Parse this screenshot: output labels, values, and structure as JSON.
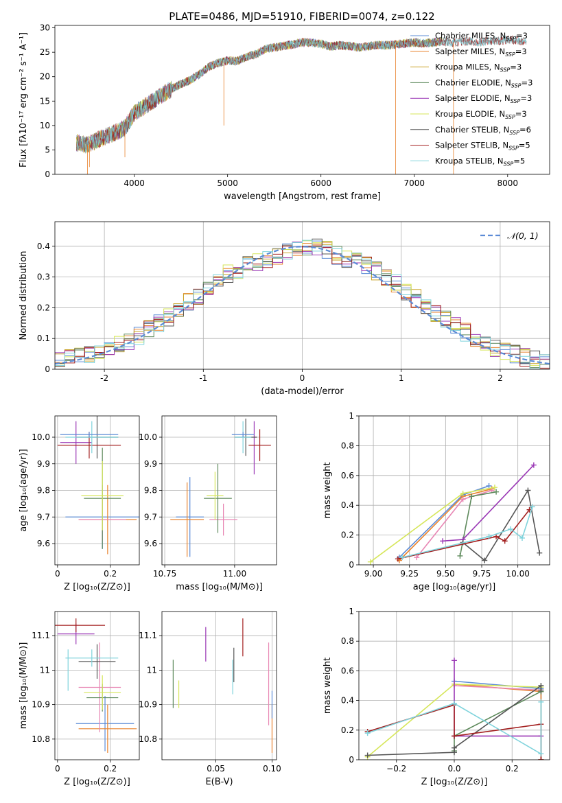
{
  "figure_title": "PLATE=0486, MJD=51910, FIBERID=0074, z=0.122",
  "colors": {
    "cha_miles": "#5b8bd6",
    "sal_miles": "#e8822c",
    "kro_miles": "#c9a227",
    "cha_elodie": "#5e8a5c",
    "sal_elodie": "#9a37b5",
    "kro_elodie": "#d6e65a",
    "cha_stelib": "#555555",
    "sal_stelib": "#a31f1f",
    "kro_stelib": "#7fd3dc",
    "pink": "#e886b4",
    "normal": "#5b8bd6"
  },
  "chart_data": [
    {
      "id": "spectrum",
      "type": "line",
      "title": "PLATE=0486, MJD=51910, FIBERID=0074, z=0.122",
      "xlabel": "wavelength [Angstrom, rest frame]",
      "ylabel": "Flux [fλ10⁻¹⁷ erg cm⁻² s⁻¹ A⁻¹]",
      "xlim": [
        3150,
        8450
      ],
      "ylim": [
        0,
        30.5
      ],
      "xticks": [
        4000,
        5000,
        6000,
        7000,
        8000
      ],
      "yticks": [
        0,
        5,
        10,
        15,
        20,
        25,
        30
      ],
      "grid": false,
      "legend_position": "upper-right",
      "legend": [
        {
          "label": "Chabrier MILES, N",
          "sub": "SSP",
          "tail": "=3",
          "color_key": "cha_miles"
        },
        {
          "label": "Salpeter MILES, N",
          "sub": "SSP",
          "tail": "=3",
          "color_key": "sal_miles"
        },
        {
          "label": "Kroupa MILES, N",
          "sub": "SSP",
          "tail": "=3",
          "color_key": "kro_miles"
        },
        {
          "label": "Chabrier ELODIE, N",
          "sub": "SSP",
          "tail": "=3",
          "color_key": "cha_elodie"
        },
        {
          "label": "Salpeter ELODIE, N",
          "sub": "SSP",
          "tail": "=3",
          "color_key": "sal_elodie"
        },
        {
          "label": "Kroupa ELODIE, N",
          "sub": "SSP",
          "tail": "=3",
          "color_key": "kro_elodie"
        },
        {
          "label": "Chabrier STELIB, N",
          "sub": "SSP",
          "tail": "=6",
          "color_key": "cha_stelib"
        },
        {
          "label": "Salpeter STELIB, N",
          "sub": "SSP",
          "tail": "=5",
          "color_key": "sal_stelib"
        },
        {
          "label": "Kroupa STELIB, N",
          "sub": "SSP",
          "tail": "=5",
          "color_key": "kro_stelib"
        }
      ],
      "continuum_x": [
        3380,
        3500,
        3600,
        3700,
        3800,
        3900,
        4000,
        4100,
        4200,
        4300,
        4400,
        4500,
        4600,
        4700,
        4800,
        4900,
        5000,
        5100,
        5200,
        5300,
        5400,
        5500,
        5600,
        5700,
        5800,
        5900,
        6000,
        6100,
        6200,
        6300,
        6400,
        6500,
        6600,
        6700,
        6800,
        6900,
        7000,
        7100,
        7200,
        7300,
        7400,
        7500,
        7600,
        7700,
        7800,
        7900,
        8000,
        8100,
        8200
      ],
      "continuum_y": [
        6.5,
        6.0,
        7.0,
        7.8,
        8.6,
        9.5,
        12.5,
        13.8,
        15.0,
        16.3,
        17.5,
        18.5,
        19.3,
        20.5,
        22.0,
        22.8,
        23.3,
        23.2,
        24.0,
        24.6,
        25.6,
        26.0,
        26.3,
        26.6,
        27.0,
        27.0,
        26.7,
        26.2,
        26.4,
        26.3,
        26.0,
        26.2,
        26.5,
        26.4,
        26.6,
        26.8,
        27.0,
        26.8,
        27.0,
        27.2,
        27.0,
        27.1,
        27.3,
        27.0,
        27.4,
        27.3,
        27.6,
        27.5,
        27.0
      ],
      "spikes": [
        {
          "x": 3520,
          "y": 1.5
        },
        {
          "x": 3900,
          "y": 3.5
        },
        {
          "x": 4960,
          "y": 10.0
        },
        {
          "x": 6800,
          "y": 0.0
        },
        {
          "x": 7420,
          "y": 0.0
        },
        {
          "x": 3500,
          "y": 0.0
        }
      ]
    },
    {
      "id": "residual_hist",
      "type": "histogram",
      "xlabel": "(data-model)/error",
      "ylabel": "Normed distribution",
      "xlim": [
        -2.5,
        2.5
      ],
      "ylim": [
        0,
        0.48
      ],
      "xticks": [
        -2,
        -1,
        0,
        1,
        2
      ],
      "yticks": [
        0.0,
        0.1,
        0.2,
        0.3,
        0.4
      ],
      "grid": true,
      "legend_position": "upper-right",
      "legend": [
        {
          "label": "𝒩(0, 1)",
          "color_key": "normal",
          "style": "dashed"
        }
      ],
      "bin_width": 0.1,
      "bin_start": -2.5,
      "base_template": [
        0.03,
        0.04,
        0.04,
        0.05,
        0.06,
        0.07,
        0.08,
        0.09,
        0.11,
        0.13,
        0.15,
        0.17,
        0.19,
        0.22,
        0.24,
        0.26,
        0.29,
        0.31,
        0.32,
        0.34,
        0.35,
        0.36,
        0.37,
        0.38,
        0.39,
        0.4,
        0.4,
        0.39,
        0.37,
        0.36,
        0.35,
        0.34,
        0.32,
        0.3,
        0.28,
        0.25,
        0.23,
        0.2,
        0.18,
        0.16,
        0.14,
        0.12,
        0.1,
        0.08,
        0.07,
        0.06,
        0.05,
        0.04,
        0.03,
        0.02
      ],
      "series_keys": [
        "cha_miles",
        "sal_miles",
        "kro_miles",
        "cha_elodie",
        "sal_elodie",
        "kro_elodie",
        "cha_stelib",
        "sal_stelib",
        "kro_stelib"
      ]
    },
    {
      "id": "age_vs_Z",
      "type": "errorbar",
      "xlabel": "Z [log₁₀(Z/Z⊙)]",
      "ylabel": "age  [log₁₀(age/yr)]",
      "xlim": [
        -0.01,
        0.31
      ],
      "ylim": [
        9.52,
        10.08
      ],
      "xticks": [
        0.0,
        0.2
      ],
      "yticks": [
        9.6,
        9.7,
        9.8,
        9.9,
        10.0
      ],
      "ytick_labels": [
        "9.6",
        "9.7",
        "9.8",
        "9.9",
        "10.0"
      ],
      "grid": true,
      "points": [
        {
          "c": "cha_miles",
          "x": 0.17,
          "xe": 0.14,
          "y": 9.7,
          "ye": 0.12
        },
        {
          "c": "sal_miles",
          "x": 0.19,
          "xe": 0.11,
          "y": 9.69,
          "ye": 0.13
        },
        {
          "c": "pink",
          "x": 0.17,
          "xe": 0.09,
          "y": 9.69,
          "ye": 0.08
        },
        {
          "c": "cha_elodie",
          "x": 0.17,
          "xe": 0.07,
          "y": 9.77,
          "ye": 0.19
        },
        {
          "c": "kro_elodie",
          "x": 0.17,
          "xe": 0.08,
          "y": 9.78,
          "ye": 0.13
        },
        {
          "c": "sal_elodie",
          "x": 0.07,
          "xe": 0.06,
          "y": 9.98,
          "ye": 0.08
        },
        {
          "c": "cha_stelib",
          "x": 0.15,
          "xe": 0.08,
          "y": 10.0,
          "ye": 0.08
        },
        {
          "c": "sal_stelib",
          "x": 0.12,
          "xe": 0.12,
          "y": 9.97,
          "ye": 0.05
        },
        {
          "c": "kro_stelib",
          "x": 0.13,
          "xe": 0.1,
          "y": 10.0,
          "ye": 0.06
        },
        {
          "c": "cha_miles",
          "x": 0.12,
          "xe": 0.11,
          "y": 10.01,
          "ye": 0.01
        }
      ]
    },
    {
      "id": "age_vs_mass",
      "type": "errorbar",
      "xlabel": "mass [log₁₀(M/M⊙)]",
      "ylabel": "",
      "xlim": [
        10.74,
        11.15
      ],
      "ylim": [
        9.52,
        10.08
      ],
      "xticks": [
        10.75,
        11.0
      ],
      "xtick_labels": [
        "10.75",
        "11.00"
      ],
      "yticks": [
        9.6,
        9.7,
        9.8,
        9.9,
        10.0
      ],
      "ytick_labels": [
        "9.6",
        "9.7",
        "9.8",
        "9.9",
        "10.0"
      ],
      "grid": true,
      "points": [
        {
          "c": "cha_miles",
          "x": 10.84,
          "xe": 0.05,
          "y": 9.7,
          "ye": 0.15
        },
        {
          "c": "sal_miles",
          "x": 10.83,
          "xe": 0.06,
          "y": 9.69,
          "ye": 0.14
        },
        {
          "c": "pink",
          "x": 10.96,
          "xe": 0.05,
          "y": 9.69,
          "ye": 0.06
        },
        {
          "c": "cha_elodie",
          "x": 10.94,
          "xe": 0.05,
          "y": 9.77,
          "ye": 0.13
        },
        {
          "c": "kro_elodie",
          "x": 10.93,
          "xe": 0.03,
          "y": 9.78,
          "ye": 0.09
        },
        {
          "c": "sal_elodie",
          "x": 11.07,
          "xe": 0.0,
          "y": 9.96,
          "ye": 0.1
        },
        {
          "c": "cha_stelib",
          "x": 11.04,
          "xe": 0.04,
          "y": 10.0,
          "ye": 0.07
        },
        {
          "c": "sal_stelib",
          "x": 11.09,
          "xe": 0.04,
          "y": 9.97,
          "ye": 0.06
        },
        {
          "c": "kro_stelib",
          "x": 11.03,
          "xe": 0.03,
          "y": 10.0,
          "ye": 0.06
        },
        {
          "c": "cha_miles",
          "x": 11.03,
          "xe": 0.04,
          "y": 10.01,
          "ye": 0.01
        }
      ]
    },
    {
      "id": "weight_vs_age",
      "type": "line",
      "xlabel": "age  [log₁₀(age/yr)]",
      "ylabel": "mass weight",
      "xlim": [
        8.9,
        10.22
      ],
      "ylim": [
        0,
        1.0
      ],
      "xticks": [
        9.0,
        9.25,
        9.5,
        9.75,
        10.0
      ],
      "xtick_labels": [
        "9.00",
        "9.25",
        "9.50",
        "9.75",
        "10.00"
      ],
      "yticks": [
        0.0,
        0.2,
        0.4,
        0.6,
        0.8,
        1.0
      ],
      "grid": true,
      "series": [
        {
          "c": "cha_miles",
          "x": [
            9.18,
            9.62,
            9.8
          ],
          "y": [
            0.05,
            0.47,
            0.53
          ]
        },
        {
          "c": "sal_miles",
          "x": [
            9.18,
            9.62,
            9.82
          ],
          "y": [
            0.03,
            0.46,
            0.51
          ]
        },
        {
          "c": "pink",
          "x": [
            9.3,
            9.62,
            9.82
          ],
          "y": [
            0.05,
            0.44,
            0.5
          ]
        },
        {
          "c": "cha_elodie",
          "x": [
            9.6,
            9.68,
            9.85
          ],
          "y": [
            0.06,
            0.46,
            0.49
          ]
        },
        {
          "c": "kro_elodie",
          "x": [
            8.98,
            9.62,
            9.84
          ],
          "y": [
            0.02,
            0.48,
            0.52
          ]
        },
        {
          "c": "sal_elodie",
          "x": [
            9.48,
            9.62,
            10.11
          ],
          "y": [
            0.16,
            0.17,
            0.67
          ]
        },
        {
          "c": "cha_stelib",
          "x": [
            9.62,
            9.77,
            10.07,
            10.15
          ],
          "y": [
            0.15,
            0.03,
            0.5,
            0.08
          ]
        },
        {
          "c": "sal_stelib",
          "x": [
            9.17,
            9.85,
            9.91,
            10.08
          ],
          "y": [
            0.04,
            0.19,
            0.16,
            0.37
          ]
        },
        {
          "c": "kro_stelib",
          "x": [
            9.2,
            9.8,
            9.95,
            10.03,
            10.1
          ],
          "y": [
            0.05,
            0.19,
            0.24,
            0.18,
            0.39
          ]
        }
      ]
    },
    {
      "id": "mass_vs_Z",
      "type": "errorbar",
      "xlabel": "Z [log₁₀(Z/Z⊙)]",
      "ylabel": "mass [log₁₀(M/M⊙)]",
      "xlim": [
        -0.01,
        0.31
      ],
      "ylim": [
        10.74,
        11.17
      ],
      "xticks": [
        0.0,
        0.2
      ],
      "yticks": [
        10.8,
        10.9,
        11.0,
        11.1
      ],
      "grid": true,
      "points": [
        {
          "c": "cha_miles",
          "x": 0.18,
          "xe": 0.11,
          "y": 10.845,
          "ye": 0.08
        },
        {
          "c": "sal_miles",
          "x": 0.19,
          "xe": 0.11,
          "y": 10.83,
          "ye": 0.07
        },
        {
          "c": "pink",
          "x": 0.16,
          "xe": 0.08,
          "y": 10.95,
          "ye": 0.13
        },
        {
          "c": "cha_elodie",
          "x": 0.17,
          "xe": 0.06,
          "y": 10.92,
          "ye": 0.04
        },
        {
          "c": "kro_elodie",
          "x": 0.17,
          "xe": 0.07,
          "y": 10.935,
          "ye": 0.05
        },
        {
          "c": "sal_elodie",
          "x": 0.07,
          "xe": 0.07,
          "y": 11.105,
          "ye": 0.03
        },
        {
          "c": "cha_stelib",
          "x": 0.15,
          "xe": 0.07,
          "y": 11.025,
          "ye": 0.05
        },
        {
          "c": "sal_stelib",
          "x": 0.07,
          "xe": 0.11,
          "y": 11.13,
          "ye": 0.02
        },
        {
          "c": "kro_stelib",
          "x": 0.13,
          "xe": 0.1,
          "y": 11.035,
          "ye": 0.025
        },
        {
          "c": "kro_stelib",
          "x": 0.04,
          "xe": 0.0,
          "y": 11.0,
          "ye": 0.06
        }
      ]
    },
    {
      "id": "mass_vs_EBV",
      "type": "errorbar",
      "xlabel": "E(B-V)",
      "ylabel": "",
      "xlim": [
        0.002,
        0.104
      ],
      "ylim": [
        10.74,
        11.17
      ],
      "xticks": [
        0.05,
        0.1
      ],
      "xtick_labels": [
        "0.05",
        "0.10"
      ],
      "yticks": [
        10.8,
        10.9,
        11.0,
        11.1
      ],
      "grid": true,
      "points": [
        {
          "c": "cha_elodie",
          "x": 0.012,
          "xe": 0,
          "y": 10.96,
          "ye": 0.07
        },
        {
          "c": "kro_elodie",
          "x": 0.017,
          "xe": 0,
          "y": 10.93,
          "ye": 0.04
        },
        {
          "c": "sal_elodie",
          "x": 0.041,
          "xe": 0,
          "y": 11.075,
          "ye": 0.05
        },
        {
          "c": "cha_stelib",
          "x": 0.066,
          "xe": 0,
          "y": 11.015,
          "ye": 0.05
        },
        {
          "c": "kro_stelib",
          "x": 0.065,
          "xe": 0,
          "y": 10.98,
          "ye": 0.05
        },
        {
          "c": "sal_stelib",
          "x": 0.074,
          "xe": 0,
          "y": 11.095,
          "ye": 0.055
        },
        {
          "c": "pink",
          "x": 0.097,
          "xe": 0,
          "y": 10.96,
          "ye": 0.12
        },
        {
          "c": "sal_miles",
          "x": 0.1,
          "xe": 0,
          "y": 10.83,
          "ye": 0.07
        },
        {
          "c": "cha_miles",
          "x": 0.1,
          "xe": 0,
          "y": 10.9,
          "ye": 0.04
        }
      ]
    },
    {
      "id": "weight_vs_Z",
      "type": "line",
      "xlabel": "Z [log₁₀(Z/Z⊙)]",
      "ylabel": "mass weight",
      "xlim": [
        -0.33,
        0.33
      ],
      "ylim": [
        0,
        1.0
      ],
      "xticks": [
        -0.2,
        0.0,
        0.2
      ],
      "xtick_labels": [
        "−0.2",
        "0.0",
        "0.2"
      ],
      "yticks": [
        0.0,
        0.2,
        0.4,
        0.6,
        0.8,
        1.0
      ],
      "grid": true,
      "series": [
        {
          "c": "cha_miles",
          "x": [
            0.0,
            0.3,
            0.3
          ],
          "y": [
            0.53,
            0.48,
            0.0
          ]
        },
        {
          "c": "sal_miles",
          "x": [
            0.0,
            0.3,
            0.3
          ],
          "y": [
            0.51,
            0.46,
            0.0
          ]
        },
        {
          "c": "pink",
          "x": [
            0.0,
            0.3
          ],
          "y": [
            0.5,
            0.47
          ]
        },
        {
          "c": "kro_elodie",
          "x": [
            -0.3,
            0.0,
            0.3
          ],
          "y": [
            0.02,
            0.51,
            0.49
          ]
        },
        {
          "c": "cha_elodie",
          "x": [
            0.0,
            0.0,
            0.3
          ],
          "y": [
            0.06,
            0.16,
            0.46
          ]
        },
        {
          "c": "sal_elodie",
          "x": [
            0.0,
            0.0,
            0.3
          ],
          "y": [
            0.67,
            0.16,
            0.16
          ]
        },
        {
          "c": "cha_stelib",
          "x": [
            -0.3,
            0.0,
            0.0,
            0.3,
            0.3
          ],
          "y": [
            0.03,
            0.05,
            0.08,
            0.5,
            0.47
          ]
        },
        {
          "c": "sal_stelib",
          "x": [
            -0.3,
            0.0,
            0.0,
            0.3,
            0.3
          ],
          "y": [
            0.19,
            0.37,
            0.16,
            0.24,
            0.0
          ]
        },
        {
          "c": "kro_stelib",
          "x": [
            -0.3,
            0.0,
            0.3,
            0.3
          ],
          "y": [
            0.18,
            0.38,
            0.04,
            0.39
          ]
        }
      ]
    }
  ]
}
